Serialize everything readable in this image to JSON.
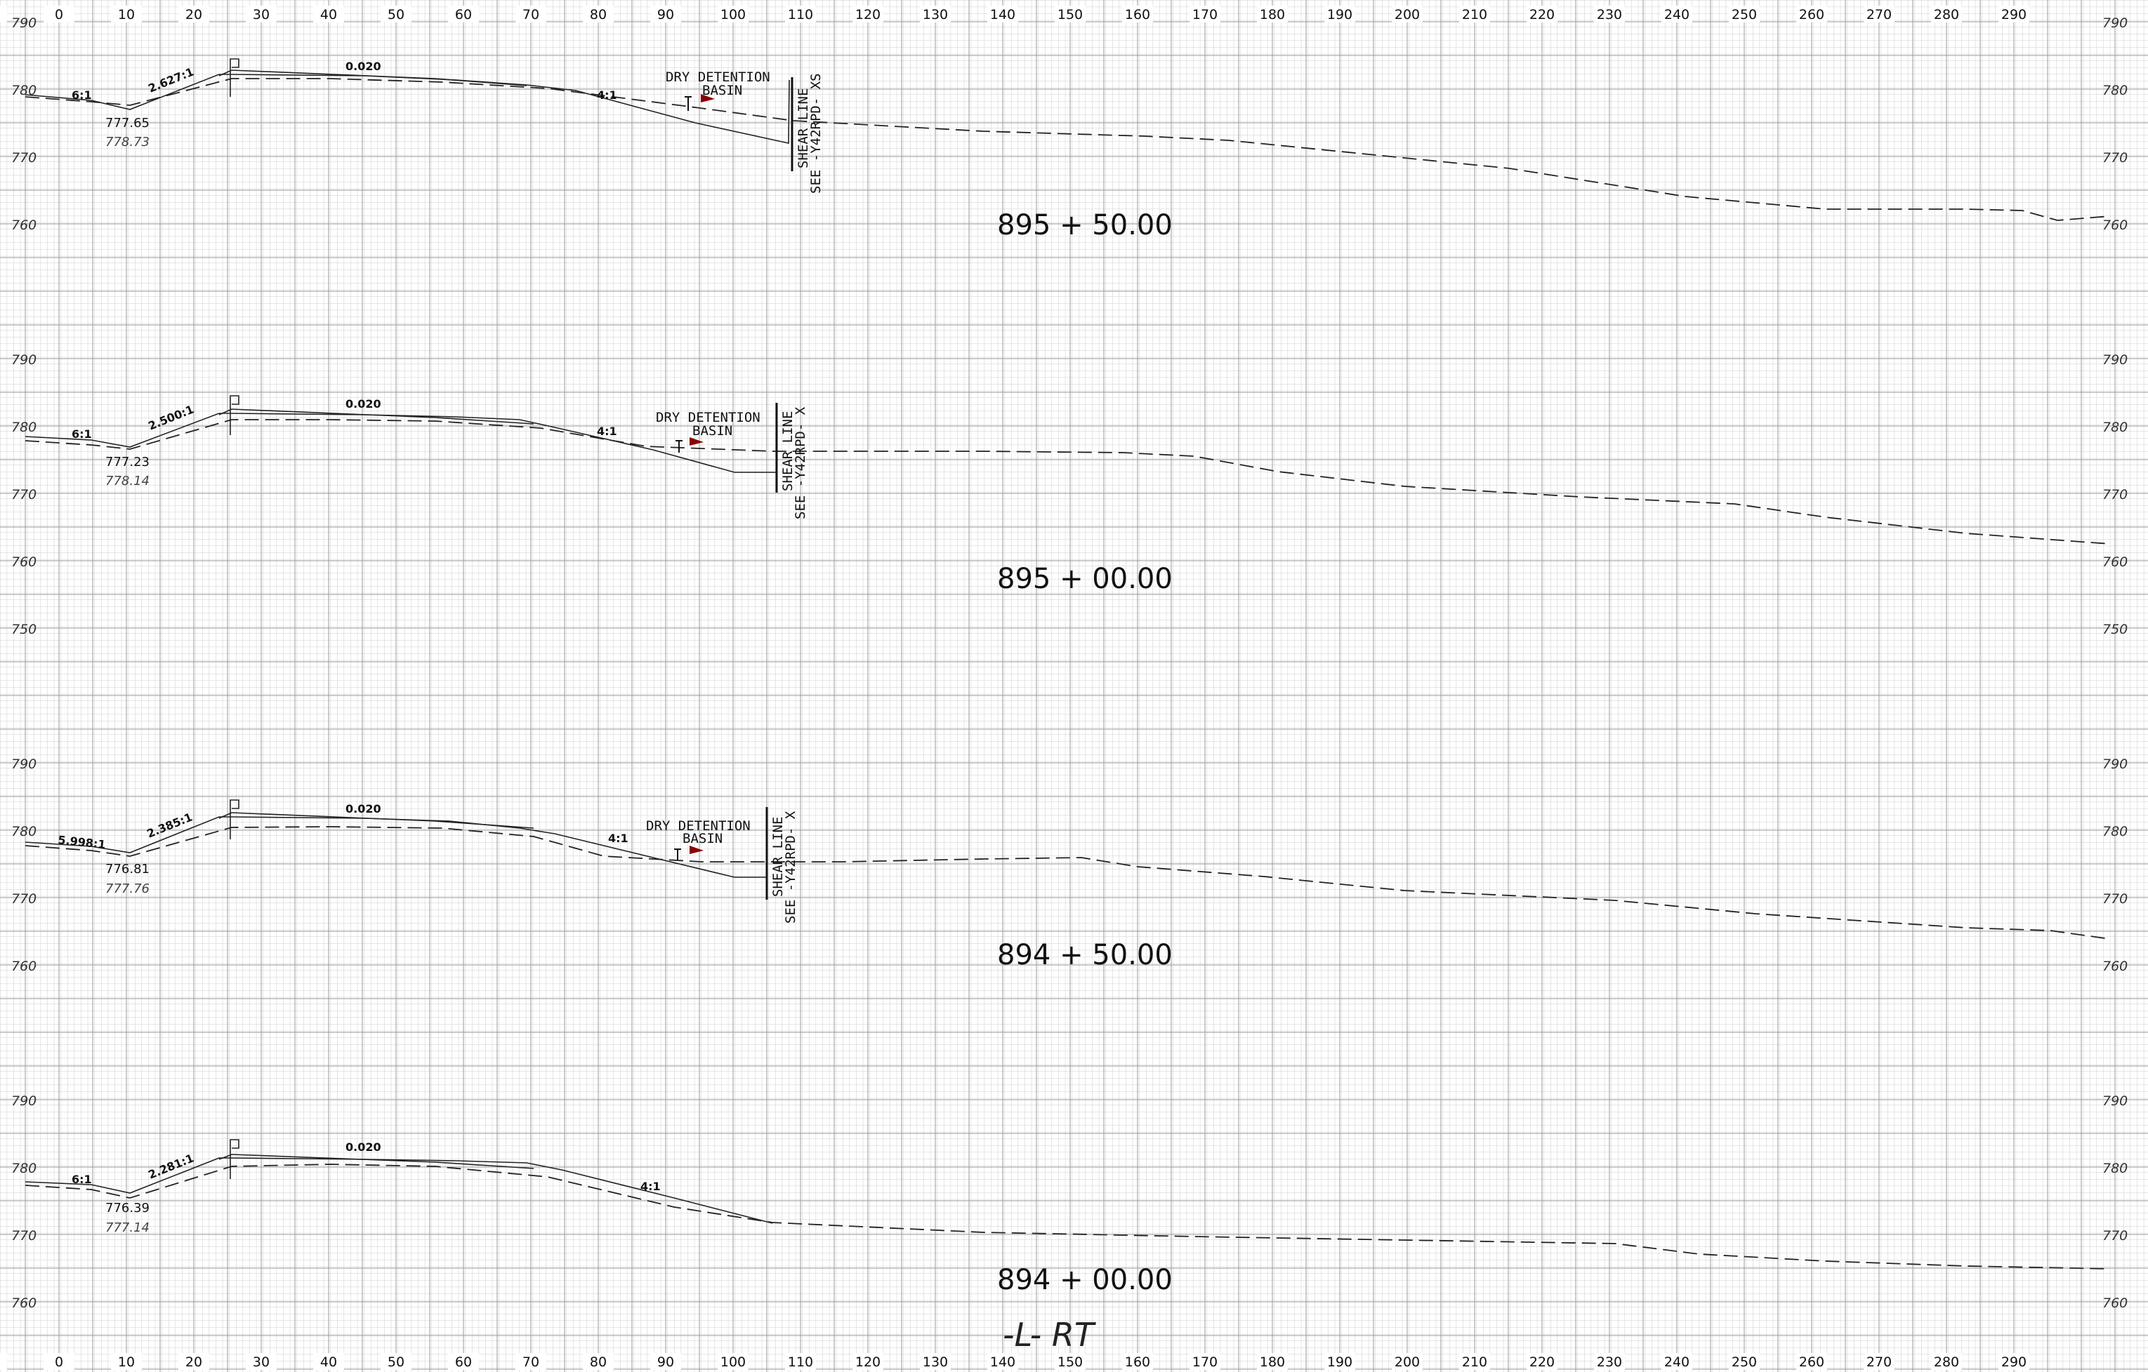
{
  "x_axis_ticks": [
    "10",
    "0",
    "10",
    "20",
    "30",
    "40",
    "50",
    "60",
    "70",
    "80",
    "90",
    "100",
    "110",
    "120",
    "130",
    "140",
    "150",
    "160",
    "170",
    "180",
    "190",
    "200",
    "210",
    "220",
    "230",
    "240",
    "250",
    "260",
    "270",
    "280",
    "290"
  ],
  "footer_label": "-L-  RT",
  "colors": {
    "grid_minor": "#c9c9c9",
    "grid_major": "#9a9a9a",
    "line": "#222222",
    "arrow": "#8b0000"
  },
  "sections": [
    {
      "station": "895 + 50.00",
      "elevations_left": [
        "790",
        "780",
        "770",
        "760"
      ],
      "elevations_right": [
        "790",
        "780",
        "770",
        "760"
      ],
      "slopes": [
        "6:1",
        "2.627:1",
        "0.020",
        "4:1"
      ],
      "ditch_elev": "777.65",
      "ditch_elev_existing": "778.73",
      "note_title": "DRY DETENTION",
      "note_sub": "BASIN",
      "match_line": "SHEAR LINE",
      "match_ref": "SEE -Y42RPD- XS"
    },
    {
      "station": "895 + 00.00",
      "elevations_left": [
        "790",
        "780",
        "770",
        "760",
        "750"
      ],
      "elevations_right": [
        "790",
        "780",
        "770",
        "760",
        "750"
      ],
      "slopes": [
        "6:1",
        "2.500:1",
        "0.020",
        "4:1"
      ],
      "ditch_elev": "777.23",
      "ditch_elev_existing": "778.14",
      "note_title": "DRY DETENTION",
      "note_sub": "BASIN",
      "match_line": "SHEAR LINE",
      "match_ref": "SEE -Y42RPD- X"
    },
    {
      "station": "894 + 50.00",
      "elevations_left": [
        "790",
        "780",
        "770",
        "760"
      ],
      "elevations_right": [
        "790",
        "780",
        "770",
        "760"
      ],
      "slopes": [
        "5.998:1",
        "2.385:1",
        "0.020",
        "4:1"
      ],
      "ditch_elev": "776.81",
      "ditch_elev_existing": "777.76",
      "note_title": "DRY DETENTION",
      "note_sub": "BASIN",
      "match_line": "SHEAR LINE",
      "match_ref": "SEE -Y42RPD- X"
    },
    {
      "station": "894 + 00.00",
      "elevations_left": [
        "790",
        "780",
        "770",
        "760"
      ],
      "elevations_right": [
        "790",
        "780",
        "770",
        "760"
      ],
      "slopes": [
        "6:1",
        "2.281:1",
        "0.020",
        "4:1"
      ],
      "ditch_elev": "776.39",
      "ditch_elev_existing": "777.14"
    }
  ]
}
